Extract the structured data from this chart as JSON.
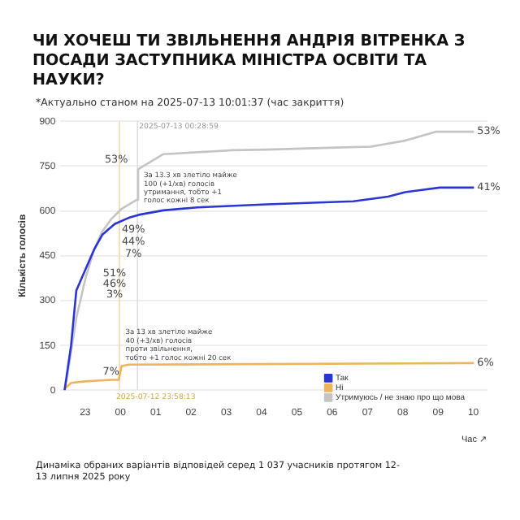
{
  "chart_data": {
    "type": "line",
    "title": "ЧИ ХОЧЕШ ТИ ЗВІЛЬНЕННЯ АНДРІЯ ВІТРЕНКА З ПОСАДИ ЗАСТУПНИКА МІНІСТРА ОСВІТИ ТА НАУКИ?",
    "subtitle": "*Актуально станом на 2025-07-13 10:01:37 (час закриття)",
    "xlabel": "Час ↗",
    "ylabel": "Кількість голосів",
    "xlim": [
      "2025-07-12T22:18",
      "2025-07-13T10:24"
    ],
    "xticks": [
      {
        "value": "2025-07-12T23:00",
        "label": "23"
      },
      {
        "value": "2025-07-13T00:00",
        "label": "00"
      },
      {
        "value": "2025-07-13T01:00",
        "label": "01"
      },
      {
        "value": "2025-07-13T02:00",
        "label": "02"
      },
      {
        "value": "2025-07-13T03:00",
        "label": "03"
      },
      {
        "value": "2025-07-13T04:00",
        "label": "04"
      },
      {
        "value": "2025-07-13T05:00",
        "label": "05"
      },
      {
        "value": "2025-07-13T06:00",
        "label": "06"
      },
      {
        "value": "2025-07-13T07:00",
        "label": "07"
      },
      {
        "value": "2025-07-13T08:00",
        "label": "08"
      },
      {
        "value": "2025-07-13T09:00",
        "label": "09"
      },
      {
        "value": "2025-07-13T10:00",
        "label": "10"
      }
    ],
    "ylim": [
      0,
      900
    ],
    "yticks": [
      0,
      150,
      300,
      450,
      600,
      750,
      900
    ],
    "grid": "y",
    "legend": "bottom right",
    "marker": "none",
    "line_style": "solid",
    "series": [
      {
        "name": "Так",
        "color": "#2b35d6",
        "x": [
          "2025-07-12T22:25",
          "2025-07-12T22:36",
          "2025-07-12T22:45",
          "2025-07-12T23:15",
          "2025-07-12T23:29",
          "2025-07-12T23:50",
          "2025-07-13T00:14",
          "2025-07-13T00:31",
          "2025-07-13T01:13",
          "2025-07-13T02:11",
          "2025-07-13T04:09",
          "2025-07-13T06:36",
          "2025-07-13T07:35",
          "2025-07-13T08:04",
          "2025-07-13T09:03",
          "2025-07-13T10:01"
        ],
        "values": [
          0,
          150,
          334,
          470,
          520,
          556,
          577,
          587,
          602,
          612,
          622,
          632,
          648,
          663,
          678,
          678
        ]
      },
      {
        "name": "Ні",
        "color": "#eeb45a",
        "x": [
          "2025-07-12T22:25",
          "2025-07-12T22:36",
          "2025-07-12T23:00",
          "2025-07-12T23:44",
          "2025-07-12T23:57",
          "2025-07-13T00:02",
          "2025-07-13T00:14",
          "2025-07-13T10:01"
        ],
        "values": [
          5,
          25,
          30,
          35,
          35,
          81,
          86,
          91
        ]
      },
      {
        "name": "Утримуюсь / не знаю про що мова",
        "color": "#c4c4c4",
        "x": [
          "2025-07-12T22:25",
          "2025-07-12T22:31",
          "2025-07-12T22:45",
          "2025-07-12T23:00",
          "2025-07-12T23:15",
          "2025-07-12T23:29",
          "2025-07-12T23:44",
          "2025-07-13T00:02",
          "2025-07-13T00:19",
          "2025-07-13T00:28",
          "2025-07-13T00:30",
          "2025-07-13T01:13",
          "2025-07-13T03:10",
          "2025-07-13T04:09",
          "2025-07-13T06:07",
          "2025-07-13T07:05",
          "2025-07-13T08:04",
          "2025-07-13T08:57",
          "2025-07-13T10:01"
        ],
        "values": [
          0,
          65,
          243,
          370,
          470,
          531,
          572,
          607,
          627,
          637,
          739,
          790,
          803,
          805,
          812,
          815,
          835,
          865,
          865
        ]
      }
    ],
    "ref_lines": [
      {
        "axis": "x",
        "value": "2025-07-13T00:28:59",
        "label": "2025-07-13 00:28:59",
        "color": "#dddddd"
      },
      {
        "axis": "x",
        "value": "2025-07-12T23:58:13",
        "label": "2025-07-12 23:58:13",
        "color": "#f3d9a8"
      }
    ],
    "annotations": [
      {
        "text": "53%",
        "x": "2025-07-13T10:01",
        "y": 865
      },
      {
        "text": "41%",
        "x": "2025-07-13T10:01",
        "y": 678
      },
      {
        "text": "6%",
        "x": "2025-07-13T10:01",
        "y": 91
      },
      {
        "text": "53%",
        "x": "2025-07-12T23:53",
        "y": 770
      },
      {
        "text": "49%",
        "x": "2025-07-13T00:22",
        "y": 536
      },
      {
        "text": "44%",
        "x": "2025-07-13T00:22",
        "y": 496
      },
      {
        "text": "7%",
        "x": "2025-07-13T00:22",
        "y": 455
      },
      {
        "text": "51%",
        "x": "2025-07-12T23:50",
        "y": 390
      },
      {
        "text": "46%",
        "x": "2025-07-12T23:50",
        "y": 354
      },
      {
        "text": "3%",
        "x": "2025-07-12T23:50",
        "y": 319
      },
      {
        "text": "7%",
        "x": "2025-07-12T23:44",
        "y": 62
      },
      {
        "text": "За 13.3 хв злетіло майже\n100 (+1/хв) голосів\nутримання, тобто +1\nголос кожні 8 сек",
        "x": "2025-07-13T00:37",
        "y": 730
      },
      {
        "text": "За 13 хв злетіло майже\n40 (+3/хв) голосів\nпроти звільнення,\nтобто +1 голос кожні 20 сек",
        "x": "2025-07-13T00:06",
        "y": 205
      },
      "Динаміка обраних варіантів відповідей серед 1 037 учасників протягом 12-13 липня 2025 року"
    ]
  }
}
